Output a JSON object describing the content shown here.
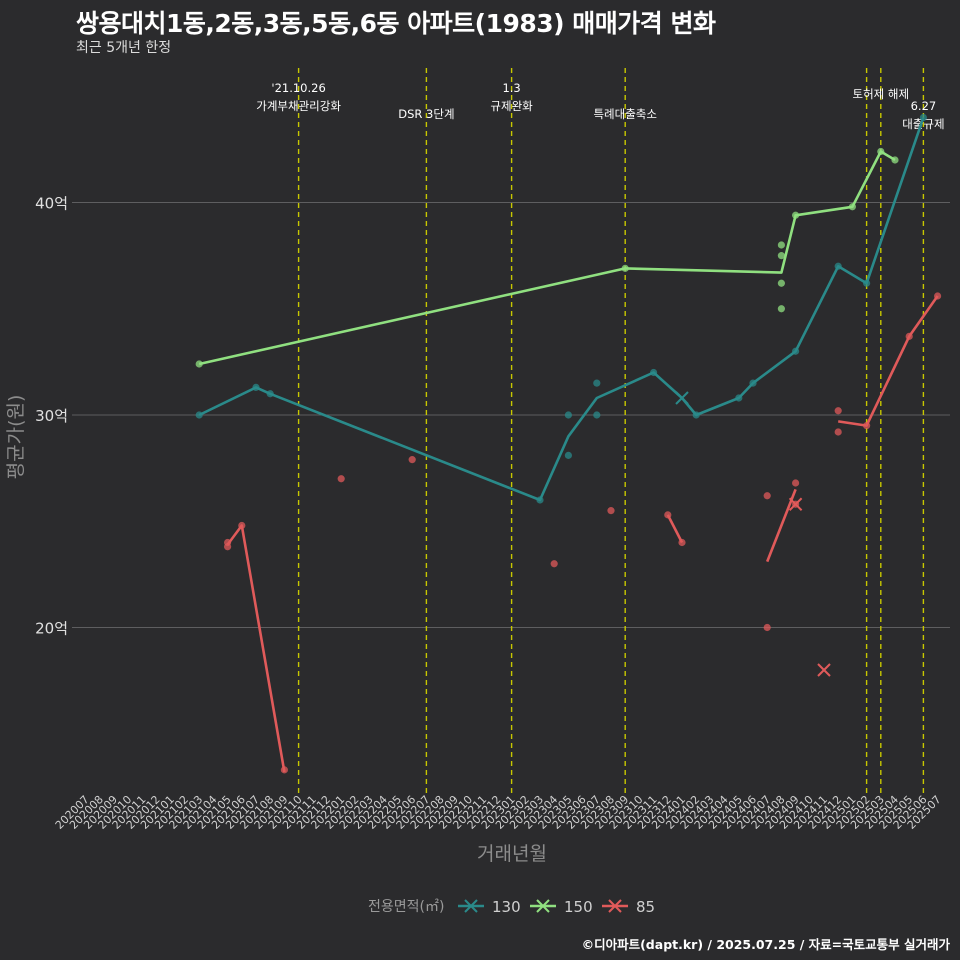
{
  "title": "쌍용대치1동,2동,3동,5동,6동 아파트(1983) 매매가격 변화",
  "subtitle": "최근 5개년 한정",
  "caption": "©디아파트(dapt.kr) / 2025.07.25 / 자료=국토교통부 실거래가",
  "colors": {
    "background": "#2b2b2d",
    "grid": "#5e5e60",
    "event_line": "#c8c800",
    "130": "#2a8a8a",
    "150": "#90e080",
    "85": "#e05a5a"
  },
  "chart_data": {
    "type": "line",
    "xlabel": "거래년월",
    "ylabel": "평균가(원)",
    "ylim": [
      12,
      45
    ],
    "yticks": [
      {
        "value": 20,
        "label": "20억"
      },
      {
        "value": 30,
        "label": "30억"
      },
      {
        "value": 40,
        "label": "40억"
      }
    ],
    "x_categories": [
      "202007",
      "202008",
      "202009",
      "202010",
      "202011",
      "202012",
      "202101",
      "202102",
      "202103",
      "202104",
      "202105",
      "202106",
      "202107",
      "202108",
      "202109",
      "202110",
      "202111",
      "202112",
      "202201",
      "202202",
      "202203",
      "202204",
      "202205",
      "202206",
      "202207",
      "202208",
      "202209",
      "202210",
      "202211",
      "202212",
      "202301",
      "202302",
      "202303",
      "202304",
      "202305",
      "202306",
      "202307",
      "202308",
      "202309",
      "202310",
      "202311",
      "202312",
      "202401",
      "202402",
      "202403",
      "202404",
      "202405",
      "202406",
      "202407",
      "202408",
      "202409",
      "202410",
      "202411",
      "202412",
      "202501",
      "202502",
      "202503",
      "202504",
      "202505",
      "202506",
      "202507"
    ],
    "legend": {
      "title": "전용면적(㎡)",
      "position": "bottom",
      "entries": [
        "130",
        "150",
        "85"
      ]
    },
    "events": [
      {
        "x": "202110",
        "label": [
          "'21.10.26",
          "가계부채관리강화"
        ],
        "tier": 1
      },
      {
        "x": "202207",
        "label": [
          "DSR 3단계"
        ],
        "tier": 2
      },
      {
        "x": "202301",
        "label": [
          "1.3",
          "규제완화"
        ],
        "tier": 1
      },
      {
        "x": "202309",
        "label": [
          "특례대출축소"
        ],
        "tier": 2
      },
      {
        "x": "202502",
        "label": [],
        "tier": 0
      },
      {
        "x": "202503",
        "label": [
          "토허제 해제"
        ],
        "tier": 1
      },
      {
        "x": "202506",
        "label": [
          "6.27",
          "대출규제"
        ],
        "tier": 1.5
      }
    ],
    "series": [
      {
        "name": "130",
        "line": [
          [
            "202103",
            30
          ],
          [
            "202107",
            31.3
          ],
          [
            "202108",
            31
          ],
          [
            "202303",
            26
          ],
          [
            "202305",
            29
          ],
          [
            "202307",
            30.8
          ],
          [
            "202311",
            32
          ],
          [
            "202401",
            30.8
          ],
          [
            "202402",
            30
          ],
          [
            "202405",
            30.8
          ],
          [
            "202406",
            31.5
          ],
          [
            "202409",
            33
          ],
          [
            "202412",
            37
          ],
          [
            "202502",
            36.2
          ],
          [
            "202506",
            44
          ]
        ],
        "points": [
          [
            "202103",
            30
          ],
          [
            "202107",
            31.3
          ],
          [
            "202108",
            31
          ],
          [
            "202303",
            26
          ],
          [
            "202305",
            30
          ],
          [
            "202305",
            28.1
          ],
          [
            "202307",
            31.5
          ],
          [
            "202307",
            30
          ],
          [
            "202311",
            32
          ],
          [
            "202402",
            30
          ],
          [
            "202405",
            30.8
          ],
          [
            "202406",
            31.5
          ],
          [
            "202409",
            33
          ],
          [
            "202412",
            37
          ],
          [
            "202502",
            36.2
          ],
          [
            "202506",
            44
          ]
        ],
        "cross": [
          [
            "202401",
            30.8
          ]
        ]
      },
      {
        "name": "150",
        "line": [
          [
            "202103",
            32.4
          ],
          [
            "202309",
            36.9
          ],
          [
            "202408",
            36.7
          ],
          [
            "202409",
            39.4
          ],
          [
            "202501",
            39.8
          ],
          [
            "202503",
            42.4
          ],
          [
            "202504",
            42
          ]
        ],
        "points": [
          [
            "202103",
            32.4
          ],
          [
            "202309",
            36.9
          ],
          [
            "202408",
            38
          ],
          [
            "202408",
            37.5
          ],
          [
            "202408",
            36.2
          ],
          [
            "202408",
            35
          ],
          [
            "202409",
            39.4
          ],
          [
            "202501",
            39.8
          ],
          [
            "202503",
            42.4
          ],
          [
            "202504",
            42
          ]
        ],
        "cross": []
      },
      {
        "name": "85",
        "line": [
          [
            "202105",
            23.9
          ],
          [
            "202106",
            24.8
          ],
          [
            "202109",
            13.2
          ]
        ],
        "line2": [
          [
            "202312",
            25.3
          ],
          [
            "202401",
            24
          ]
        ],
        "line3": [
          [
            "202407",
            23.1
          ],
          [
            "202409",
            26.5
          ]
        ],
        "line4": [
          [
            "202412",
            29.7
          ],
          [
            "202502",
            29.5
          ],
          [
            "202505",
            33.7
          ],
          [
            "202507",
            35.6
          ]
        ],
        "points": [
          [
            "202105",
            24
          ],
          [
            "202105",
            23.8
          ],
          [
            "202106",
            24.8
          ],
          [
            "202109",
            13.3
          ],
          [
            "202201",
            27
          ],
          [
            "202206",
            27.9
          ],
          [
            "202304",
            23
          ],
          [
            "202308",
            25.5
          ],
          [
            "202312",
            25.3
          ],
          [
            "202401",
            24
          ],
          [
            "202407",
            26.2
          ],
          [
            "202407",
            20
          ],
          [
            "202409",
            26.8
          ],
          [
            "202409",
            25.8
          ],
          [
            "202412",
            30.2
          ],
          [
            "202412",
            29.2
          ],
          [
            "202502",
            29.5
          ],
          [
            "202505",
            33.7
          ],
          [
            "202507",
            35.6
          ]
        ],
        "cross": [
          [
            "202409",
            25.8
          ],
          [
            "202411",
            18
          ]
        ]
      }
    ]
  }
}
